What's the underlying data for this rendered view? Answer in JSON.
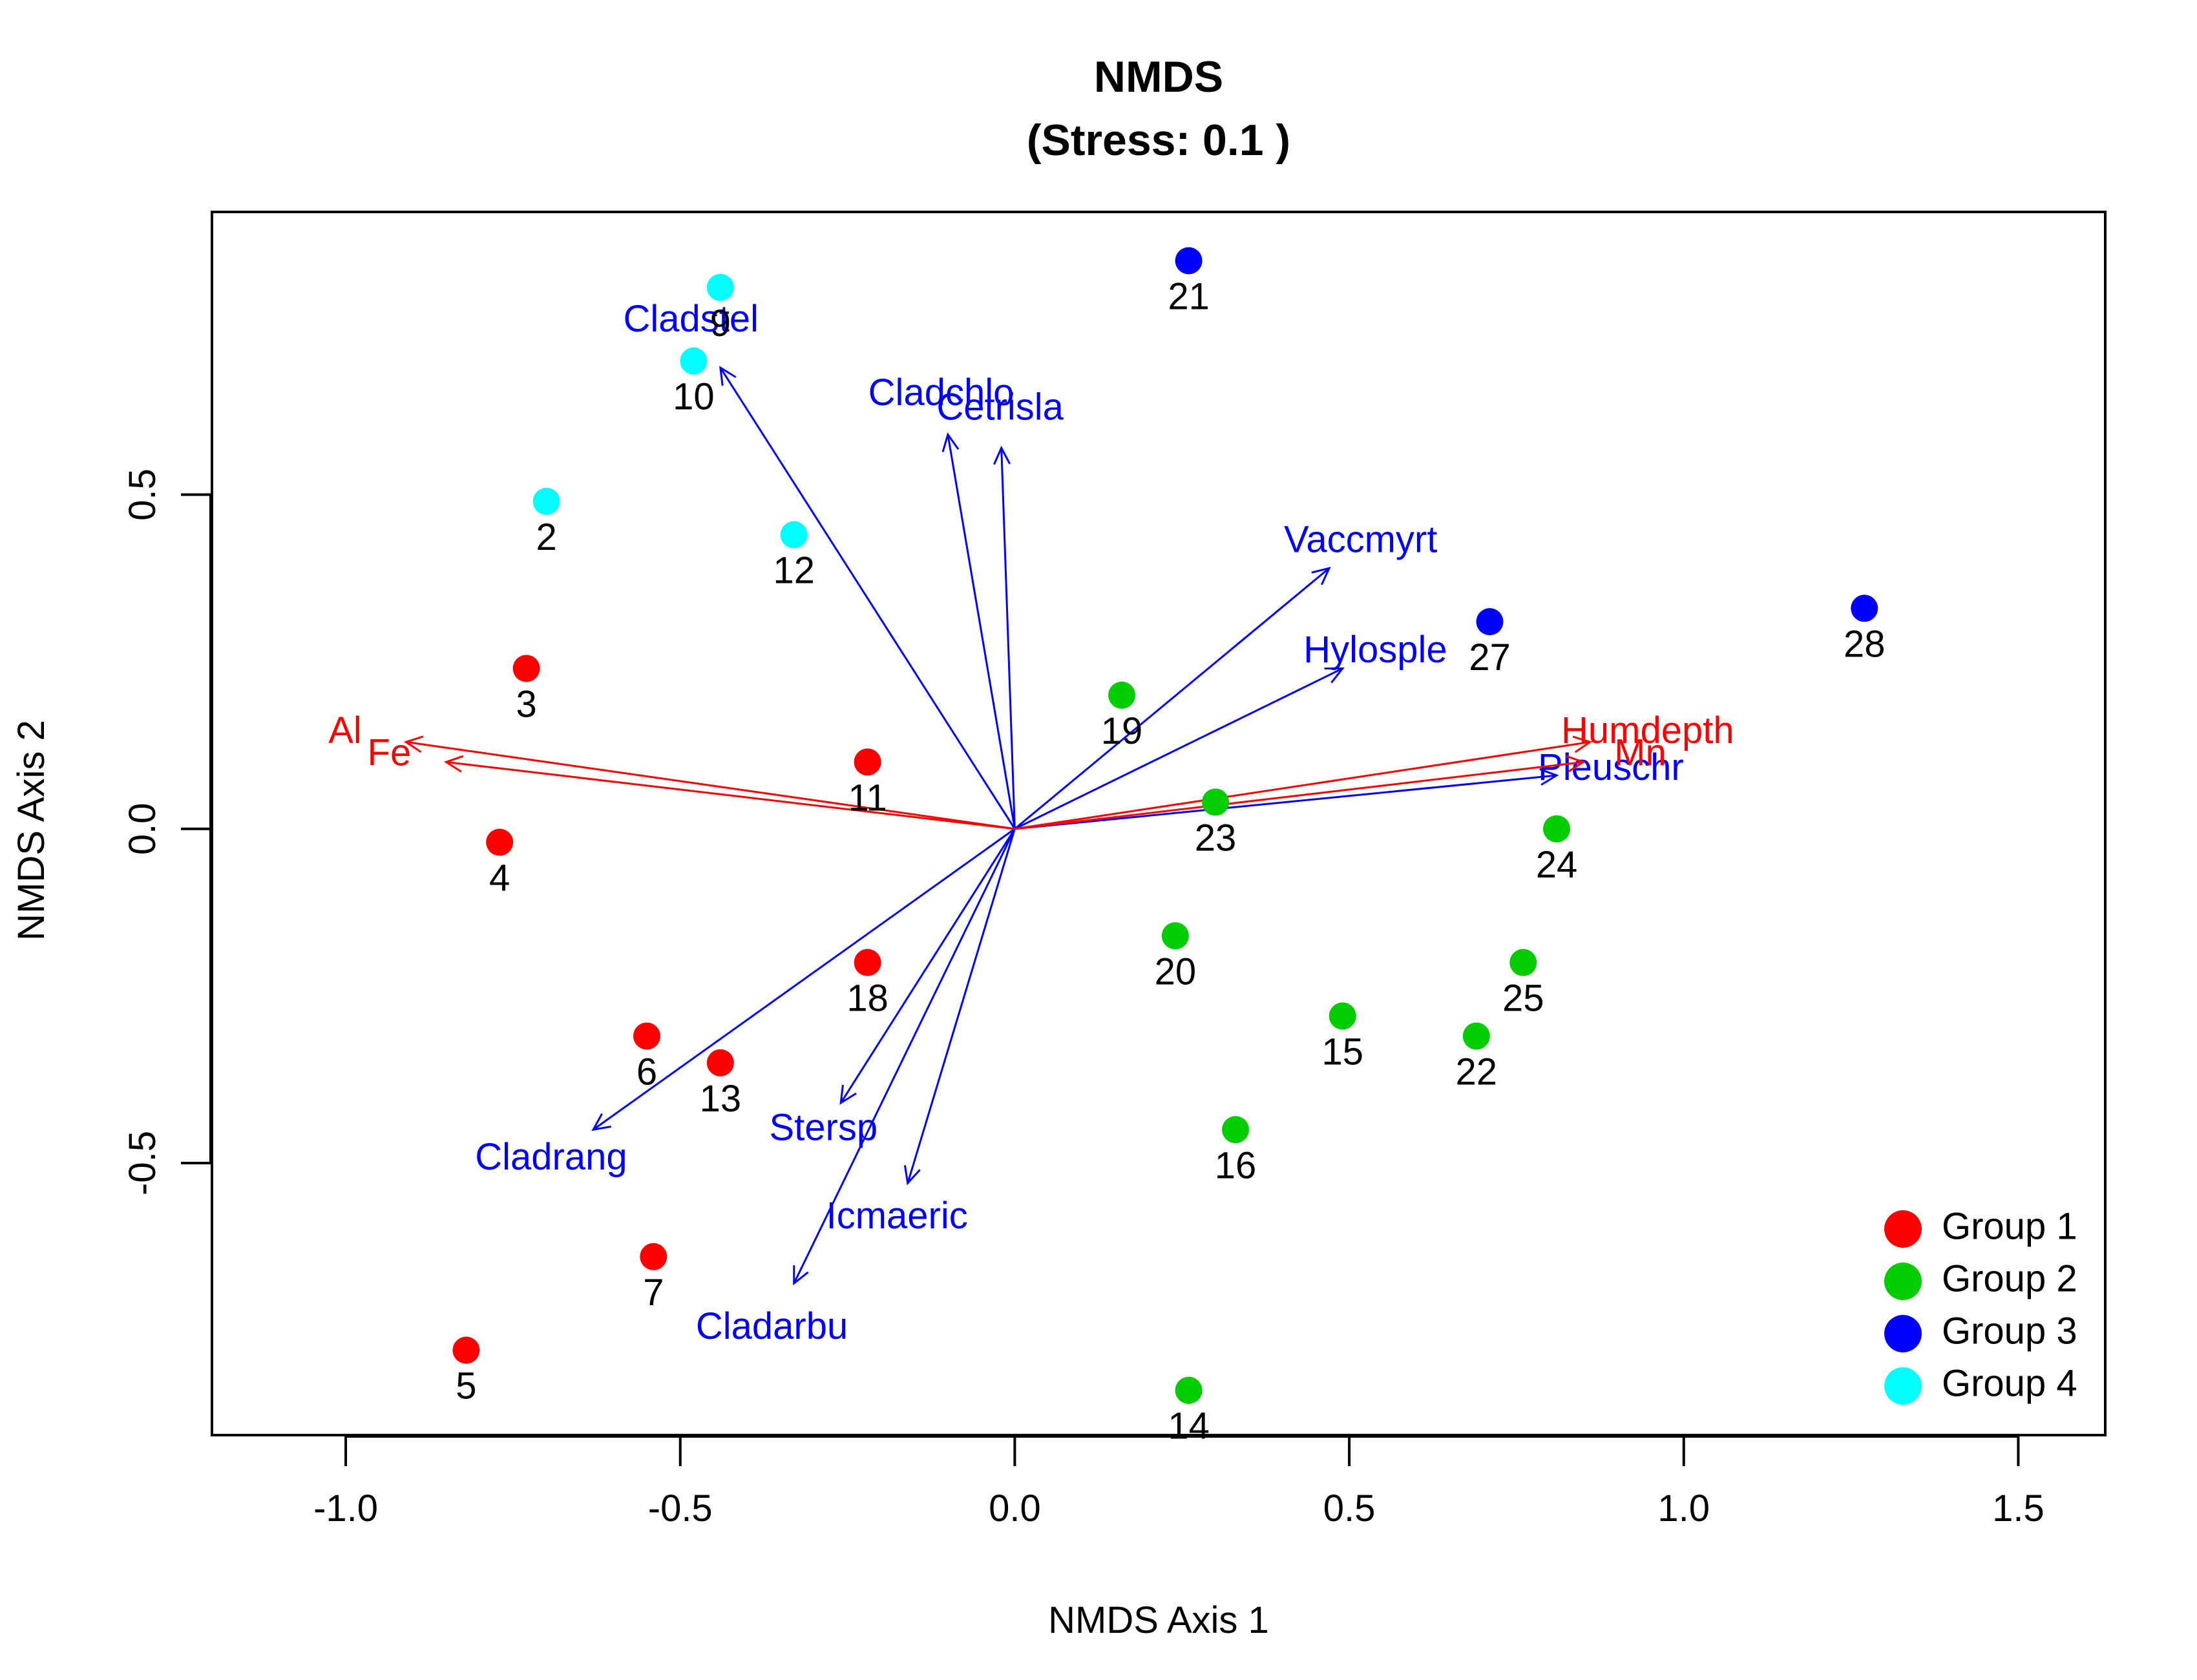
{
  "chart_data": {
    "type": "scatter",
    "title": "NMDS",
    "subtitle": "(Stress: 0.1 )",
    "xlabel": "NMDS Axis 1",
    "ylabel": "NMDS Axis 2",
    "xlim": [
      -1.2,
      1.63
    ],
    "ylim": [
      -0.907,
      0.923
    ],
    "xticks": [
      -1.0,
      -0.5,
      0.0,
      0.5,
      1.0,
      1.5
    ],
    "xtick_labels": [
      "-1.0",
      "-0.5",
      "0.0",
      "0.5",
      "1.0",
      "1.5"
    ],
    "yticks": [
      -0.5,
      0.0,
      0.5
    ],
    "ytick_labels": [
      "-0.5",
      "0.0",
      "0.5"
    ],
    "grid": false,
    "legend_position": "bottom-right",
    "groups": [
      {
        "name": "Group 1",
        "color": "#FF0000"
      },
      {
        "name": "Group 2",
        "color": "#00CD00"
      },
      {
        "name": "Group 3",
        "color": "#0000FF"
      },
      {
        "name": "Group 4",
        "color": "#00FFFF"
      }
    ],
    "points": [
      {
        "label": "2",
        "x": -0.7,
        "y": 0.49,
        "group": 3
      },
      {
        "label": "3",
        "x": -0.73,
        "y": 0.24,
        "group": 0
      },
      {
        "label": "4",
        "x": -0.77,
        "y": -0.02,
        "group": 0
      },
      {
        "label": "5",
        "x": -0.82,
        "y": -0.78,
        "group": 0
      },
      {
        "label": "6",
        "x": -0.55,
        "y": -0.31,
        "group": 0
      },
      {
        "label": "7",
        "x": -0.54,
        "y": -0.64,
        "group": 0
      },
      {
        "label": "9",
        "x": -0.44,
        "y": 0.81,
        "group": 3
      },
      {
        "label": "10",
        "x": -0.48,
        "y": 0.7,
        "group": 3
      },
      {
        "label": "11",
        "x": -0.22,
        "y": 0.1,
        "group": 0
      },
      {
        "label": "12",
        "x": -0.33,
        "y": 0.44,
        "group": 3
      },
      {
        "label": "13",
        "x": -0.44,
        "y": -0.35,
        "group": 0
      },
      {
        "label": "14",
        "x": 0.26,
        "y": -0.84,
        "group": 1
      },
      {
        "label": "15",
        "x": 0.49,
        "y": -0.28,
        "group": 1
      },
      {
        "label": "16",
        "x": 0.33,
        "y": -0.45,
        "group": 1
      },
      {
        "label": "18",
        "x": -0.22,
        "y": -0.2,
        "group": 0
      },
      {
        "label": "19",
        "x": 0.16,
        "y": 0.2,
        "group": 1
      },
      {
        "label": "20",
        "x": 0.24,
        "y": -0.16,
        "group": 1
      },
      {
        "label": "21",
        "x": 0.26,
        "y": 0.85,
        "group": 2
      },
      {
        "label": "22",
        "x": 0.69,
        "y": -0.31,
        "group": 1
      },
      {
        "label": "23",
        "x": 0.3,
        "y": 0.04,
        "group": 1
      },
      {
        "label": "24",
        "x": 0.81,
        "y": 0.0,
        "group": 1
      },
      {
        "label": "25",
        "x": 0.76,
        "y": -0.2,
        "group": 1
      },
      {
        "label": "27",
        "x": 0.71,
        "y": 0.31,
        "group": 2
      },
      {
        "label": "28",
        "x": 1.27,
        "y": 0.33,
        "group": 2
      }
    ],
    "species_vectors": [
      {
        "name": "Cladstel",
        "x": -0.44,
        "y": 0.69
      },
      {
        "name": "Cladchlo",
        "x": -0.1,
        "y": 0.59
      },
      {
        "name": "Cetrisla",
        "x": -0.02,
        "y": 0.57
      },
      {
        "name": "Vaccmyrt",
        "x": 0.47,
        "y": 0.39
      },
      {
        "name": "Hylosple",
        "x": 0.49,
        "y": 0.24
      },
      {
        "name": "Pleuschr",
        "x": 0.81,
        "y": 0.08
      },
      {
        "name": "Stersp",
        "x": -0.26,
        "y": -0.41
      },
      {
        "name": "Icmaeric",
        "x": -0.16,
        "y": -0.53
      },
      {
        "name": "Cladarbu",
        "x": -0.33,
        "y": -0.68
      },
      {
        "name": "Cladrang",
        "x": -0.63,
        "y": -0.45
      }
    ],
    "env_vectors": [
      {
        "name": "Al",
        "x": -0.91,
        "y": 0.13
      },
      {
        "name": "Fe",
        "x": -0.85,
        "y": 0.1
      },
      {
        "name": "Humdepth",
        "x": 0.86,
        "y": 0.13
      },
      {
        "name": "Mn",
        "x": 0.85,
        "y": 0.1
      }
    ],
    "species_color": "#0000FF",
    "env_color": "#FF0000"
  }
}
